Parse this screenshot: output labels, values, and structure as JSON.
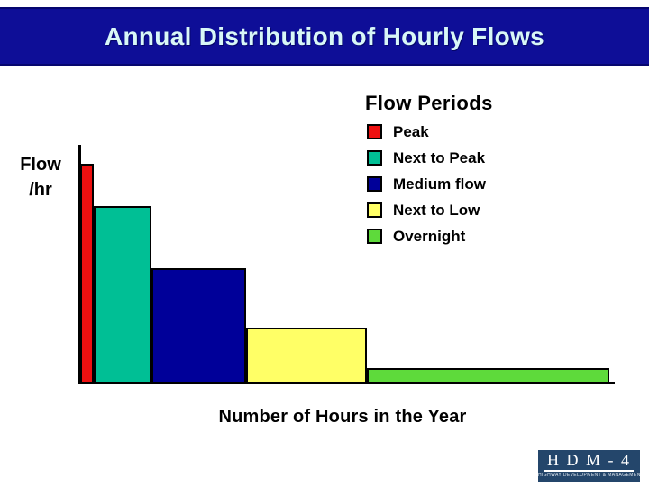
{
  "slide": {
    "banner_title": "Annual Distribution of Hourly Flows"
  },
  "legend": {
    "heading": "Flow Periods",
    "items": [
      {
        "label": "Peak",
        "color": "#ee1010"
      },
      {
        "label": "Next to Peak",
        "color": "#00bf95"
      },
      {
        "label": "Medium flow",
        "color": "#000099"
      },
      {
        "label": "Next to Low",
        "color": "#ffff66"
      },
      {
        "label": "Overnight",
        "color": "#5eda3b"
      }
    ]
  },
  "chart_data": {
    "type": "bar",
    "title": "Flow Periods",
    "xlabel": "Number of Hours in the Year",
    "ylabel": "Flow /hr",
    "ylabel_lines": [
      "Flow",
      "/hr"
    ],
    "axis_tick_labels": "none shown (schematic chart, relative units only)",
    "bar_gap": 0,
    "series": [
      {
        "name": "Peak",
        "color": "#ee1010",
        "hours_width": 15,
        "flow_height": 244
      },
      {
        "name": "Next to Peak",
        "color": "#00bf95",
        "hours_width": 64,
        "flow_height": 197
      },
      {
        "name": "Medium flow",
        "color": "#000099",
        "hours_width": 105,
        "flow_height": 128
      },
      {
        "name": "Next to Low",
        "color": "#ffff66",
        "hours_width": 134,
        "flow_height": 62
      },
      {
        "name": "Overnight",
        "color": "#5eda3b",
        "hours_width": 269,
        "flow_height": 17
      }
    ]
  },
  "logo": {
    "title": "H D M - 4",
    "subtitle": "HIGHWAY DEVELOPMENT & MANAGEMENT"
  }
}
